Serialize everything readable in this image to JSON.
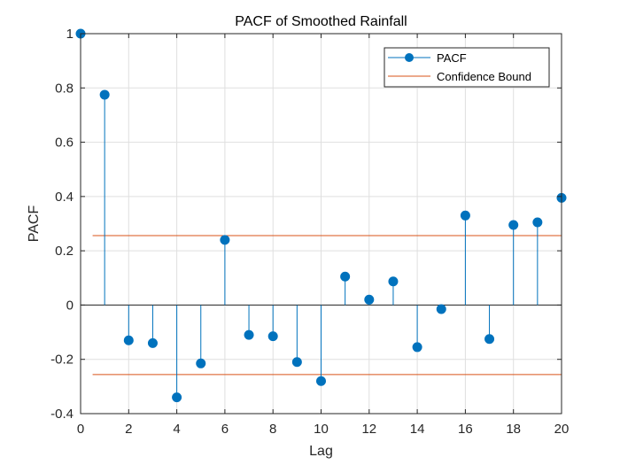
{
  "chart_data": {
    "type": "stem",
    "title": "PACF of Smoothed Rainfall",
    "xlabel": "Lag",
    "ylabel": "PACF",
    "xlim": [
      0,
      20
    ],
    "ylim": [
      -0.4,
      1
    ],
    "xticks": [
      0,
      2,
      4,
      6,
      8,
      10,
      12,
      14,
      16,
      18,
      20
    ],
    "yticks": [
      -0.4,
      -0.2,
      0,
      0.2,
      0.4,
      0.6,
      0.8,
      1
    ],
    "ytick_labels": [
      "-0.4",
      "-0.2",
      "0",
      "0.2",
      "0.4",
      "0.6",
      "0.8",
      "1"
    ],
    "grid": true,
    "legend_position": "top-right",
    "series": [
      {
        "name": "PACF",
        "color": "#0072BD",
        "x": [
          0,
          1,
          2,
          3,
          4,
          5,
          6,
          7,
          8,
          9,
          10,
          11,
          12,
          13,
          14,
          15,
          16,
          17,
          18,
          19,
          20
        ],
        "values": [
          1.0,
          0.775,
          -0.13,
          -0.14,
          -0.34,
          -0.215,
          0.24,
          -0.11,
          -0.115,
          -0.21,
          -0.28,
          0.105,
          0.02,
          0.087,
          -0.155,
          -0.015,
          0.33,
          -0.125,
          0.295,
          0.305,
          0.395
        ]
      }
    ],
    "confidence_bound": {
      "name": "Confidence Bound",
      "color": "#D95319",
      "upper": 0.256,
      "lower": -0.256,
      "x_start": 0.5,
      "x_end": 20
    }
  }
}
